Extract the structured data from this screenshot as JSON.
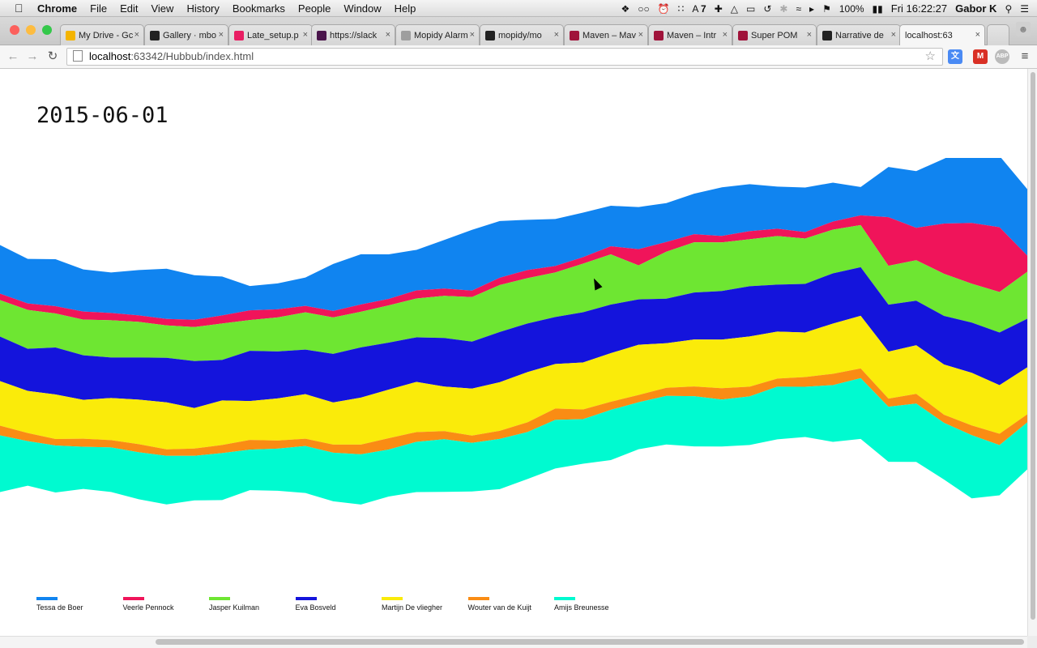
{
  "menubar": {
    "items": [
      "Chrome",
      "File",
      "Edit",
      "View",
      "History",
      "Bookmarks",
      "People",
      "Window",
      "Help"
    ],
    "status": {
      "badge": "7",
      "battery": "100%",
      "clock": "Fri 16:22:27",
      "user": "Gabor K"
    }
  },
  "tabs": [
    {
      "label": "My Drive - Gc",
      "fav": "#f4b400"
    },
    {
      "label": "Gallery · mbo",
      "fav": "#222222"
    },
    {
      "label": "Late_setup.p",
      "fav": "#e91e63"
    },
    {
      "label": "https://slack",
      "fav": "#4a154b"
    },
    {
      "label": "Mopidy Alarm",
      "fav": "#9e9e9e"
    },
    {
      "label": "mopidy/mo",
      "fav": "#222222"
    },
    {
      "label": "Maven – Mav",
      "fav": "#a0133a"
    },
    {
      "label": "Maven – Intr",
      "fav": "#a0133a"
    },
    {
      "label": "Super POM",
      "fav": "#a0133a"
    },
    {
      "label": "Narrative de",
      "fav": "#222222"
    },
    {
      "label": "localhost:63",
      "fav": ""
    }
  ],
  "address": {
    "host": "localhost",
    "path": ":63342/Hubbub/index.html"
  },
  "page": {
    "date": "2015-06-01"
  },
  "colors": {
    "tessa": "#1084f0",
    "veerle": "#f0145a",
    "jasper": "#6ee632",
    "eva": "#1414dc",
    "martijn": "#faeb0a",
    "wouter": "#fa8c14",
    "amijs": "#00fad0"
  },
  "chart_data": {
    "type": "area",
    "stacked": true,
    "offset": "wiggle",
    "series": [
      {
        "name": "Tessa de Boer",
        "color": "#1084f0",
        "values": [
          60,
          55,
          58,
          52,
          50,
          56,
          62,
          55,
          48,
          30,
          32,
          35,
          58,
          62,
          55,
          50,
          60,
          75,
          70,
          62,
          58,
          55,
          50,
          52,
          48,
          50,
          60,
          58,
          52,
          55,
          48,
          35,
          62,
          70,
          80,
          95,
          88,
          82
        ]
      },
      {
        "name": "Veerle Pennock",
        "color": "#f0145a",
        "values": [
          8,
          8,
          9,
          10,
          9,
          8,
          8,
          9,
          10,
          12,
          10,
          8,
          8,
          9,
          8,
          10,
          9,
          8,
          9,
          10,
          8,
          8,
          10,
          20,
          12,
          10,
          8,
          10,
          9,
          8,
          10,
          12,
          60,
          40,
          62,
          75,
          80,
          20
        ]
      },
      {
        "name": "Jasper Kuilman",
        "color": "#6ee632",
        "values": [
          45,
          48,
          42,
          44,
          46,
          44,
          40,
          42,
          45,
          38,
          42,
          46,
          45,
          44,
          46,
          48,
          52,
          55,
          58,
          56,
          55,
          60,
          62,
          42,
          58,
          62,
          60,
          58,
          60,
          56,
          54,
          52,
          48,
          50,
          52,
          48,
          50,
          58
        ]
      },
      {
        "name": "Eva Bosveld",
        "color": "#1414dc",
        "values": [
          55,
          52,
          58,
          55,
          50,
          52,
          55,
          58,
          50,
          62,
          58,
          55,
          60,
          62,
          58,
          55,
          60,
          58,
          62,
          60,
          58,
          62,
          60,
          56,
          55,
          58,
          60,
          62,
          58,
          60,
          62,
          60,
          58,
          55,
          60,
          62,
          65,
          60
        ]
      },
      {
        "name": "Martijn De vliegher",
        "color": "#faeb0a",
        "values": [
          55,
          52,
          55,
          48,
          52,
          55,
          58,
          50,
          55,
          48,
          52,
          55,
          52,
          58,
          60,
          62,
          55,
          58,
          60,
          62,
          55,
          58,
          60,
          62,
          55,
          58,
          60,
          62,
          58,
          55,
          62,
          65,
          58,
          60,
          62,
          65,
          60,
          58
        ]
      },
      {
        "name": "Wouter van de Kuijt",
        "color": "#fa8c14",
        "values": [
          12,
          10,
          8,
          10,
          9,
          10,
          8,
          9,
          10,
          12,
          10,
          9,
          10,
          12,
          14,
          12,
          10,
          9,
          10,
          12,
          14,
          12,
          10,
          9,
          10,
          12,
          14,
          12,
          10,
          12,
          14,
          12,
          10,
          12,
          10,
          12,
          14,
          10
        ]
      },
      {
        "name": "Amijs Breunesse",
        "color": "#00fad0",
        "values": [
          70,
          55,
          58,
          52,
          55,
          58,
          60,
          55,
          58,
          50,
          52,
          58,
          60,
          62,
          58,
          62,
          65,
          60,
          62,
          58,
          60,
          55,
          62,
          58,
          60,
          62,
          58,
          60,
          65,
          62,
          70,
          75,
          68,
          72,
          70,
          78,
          62,
          58
        ]
      }
    ],
    "legend": "bottom-left"
  }
}
